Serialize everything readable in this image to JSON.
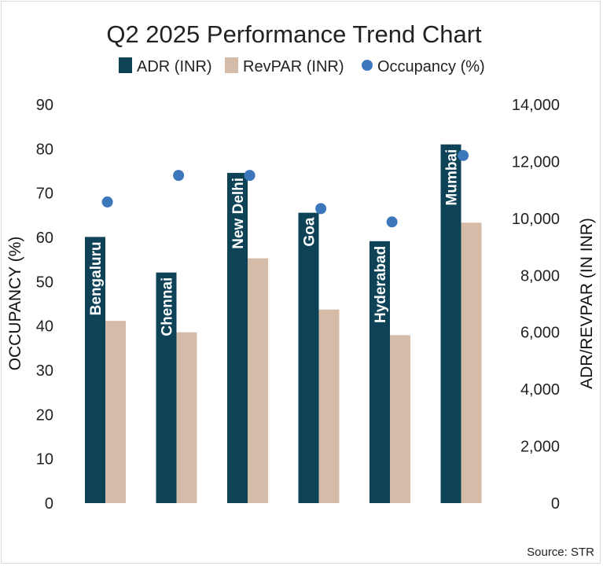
{
  "chart_data": {
    "type": "bar",
    "title": "Q2 2025 Performance Trend Chart",
    "source": "Source: STR",
    "categories": [
      "Bengaluru",
      "Chennai",
      "New Delhi",
      "Goa",
      "Hyderabad",
      "Mumbai"
    ],
    "series": [
      {
        "name": "ADR (INR)",
        "kind": "bar",
        "axis": "right",
        "color": "#0d4257",
        "values": [
          9350,
          8100,
          11600,
          10200,
          9200,
          12600
        ]
      },
      {
        "name": "RevPAR (INR)",
        "kind": "bar",
        "axis": "right",
        "color": "#d5bca8",
        "values": [
          6400,
          6000,
          8600,
          6800,
          5900,
          9850
        ]
      },
      {
        "name": "Occupancy (%)",
        "kind": "scatter",
        "axis": "left",
        "color": "#3d77bb",
        "values": [
          68,
          74,
          74,
          66.5,
          63.5,
          78.5
        ]
      }
    ],
    "y_left": {
      "label": "OCCUPANCY (%)",
      "ylim": [
        0,
        90
      ],
      "ticks": [
        0,
        10,
        20,
        30,
        40,
        50,
        60,
        70,
        80,
        90
      ]
    },
    "y_right": {
      "label": "ADR/REVPAR (IN INR)",
      "ylim": [
        0,
        14000
      ],
      "ticks": [
        "0",
        "2,000",
        "4,000",
        "6,000",
        "8,000",
        "10,000",
        "12,000",
        "14,000"
      ]
    },
    "grid": false,
    "legend_position": "top-center"
  }
}
